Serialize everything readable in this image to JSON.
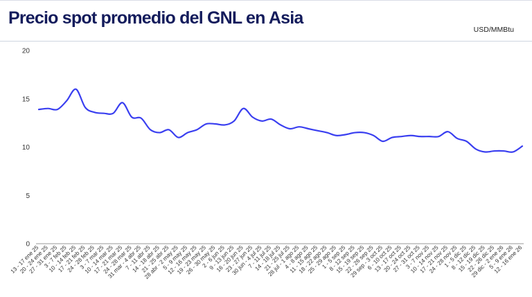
{
  "header": {
    "title": "Precio spot promedio del GNL en Asia",
    "unit": "USD/MMBtu"
  },
  "colors": {
    "line": "#3a3ff0",
    "title": "#141c5c",
    "axis": "#333333",
    "grid": "#e3e3e3"
  },
  "chart_data": {
    "type": "line",
    "title": "Precio spot promedio del GNL en Asia",
    "ylabel": "USD/MMBtu",
    "xlabel": "",
    "ylim": [
      0,
      20
    ],
    "yticks": [
      0,
      5,
      10,
      15,
      20
    ],
    "grid": false,
    "legend": "none",
    "categories": [
      "13 - 17 ene 25",
      "20 - 24 ene 25",
      "27 - 31 ene 25",
      "3 - 7 feb 25",
      "10 - 14 feb 25",
      "17 - 21 feb 25",
      "24 - 28 feb 25",
      "3 - 7 mar 25",
      "10 - 14 mar 25",
      "17 - 21 mar 25",
      "24 - 28 mar 25",
      "31 mar - 4 abr 25",
      "7 - 11 abr 25",
      "14 - 18 abr 25",
      "21 - 25 abr 25",
      "28 abr - 2 may 25",
      "5 - 9 may 25",
      "12 - 16 may 25",
      "19 - 23 may 25",
      "26 - 30 may 25",
      "2 - 6 jun 25",
      "9 - 13 jun 25",
      "16 - 20 jun 25",
      "23 - 27 jun 25",
      "30 jun - 4 jul 25",
      "7 - 11 jul 25",
      "14 - 18 jul 25",
      "21 - 25 jul 25",
      "28 jul - 1 ago 25",
      "4 - 8 ago 25",
      "11 - 15 ago 25",
      "18 - 22 ago 25",
      "25 - 29 ago 25",
      "1 - 5 sep 25",
      "8 - 12 sep 25",
      "15 - 19 sep 25",
      "22 - 26 sep 25",
      "29 sep - 3 oct 25",
      "6 - 10 oct 25",
      "13 - 17 oct 25",
      "20 - 24 oct 25",
      "27 - 31 oct 25",
      "3 - 7 nov 25",
      "10 - 14 nov 25",
      "17 - 21 nov 25",
      "24 - 28 nov 25",
      "1 - 5 dic 25",
      "8 - 12 dic 25",
      "15 - 19 dic 25",
      "22 - 26 dic 25",
      "29 dic - 2 ene 26",
      "5 - 9 ene 26",
      "12 - 16 ene 26"
    ],
    "series": [
      {
        "values": [
          13.9,
          14.0,
          13.9,
          14.8,
          16.0,
          14.1,
          13.6,
          13.5,
          13.5,
          14.6,
          13.1,
          13.0,
          11.8,
          11.5,
          11.8,
          11.0,
          11.5,
          11.8,
          12.4,
          12.4,
          12.3,
          12.7,
          14.0,
          13.1,
          12.7,
          12.9,
          12.3,
          11.9,
          12.1,
          11.9,
          11.7,
          11.5,
          11.2,
          11.3,
          11.5,
          11.5,
          11.2,
          10.6,
          11.0,
          11.1,
          11.2,
          11.1,
          11.1,
          11.1,
          11.6,
          10.9,
          10.6,
          9.8,
          9.5,
          9.6,
          9.6,
          9.5,
          10.1
        ]
      }
    ]
  }
}
